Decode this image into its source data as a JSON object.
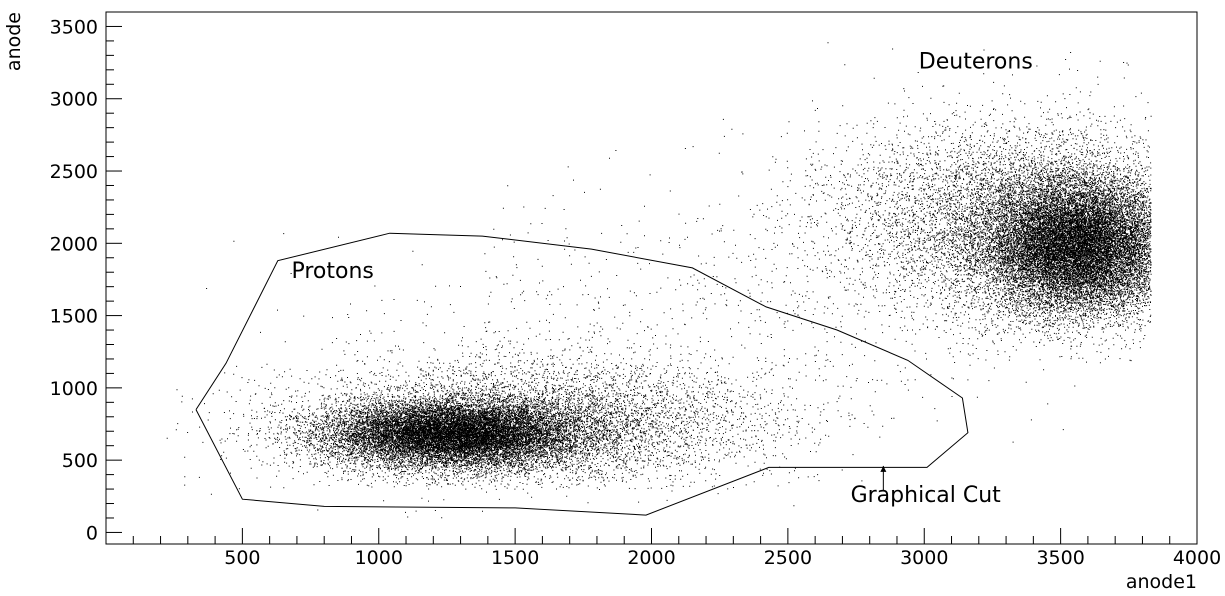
{
  "chart_data": {
    "type": "scatter",
    "title": "",
    "xlabel": "anode1",
    "ylabel": "anode",
    "xlim": [
      0,
      4000
    ],
    "ylim": [
      -80,
      3600
    ],
    "grid": false,
    "legend": "none",
    "x_ticks": [
      500,
      1000,
      1500,
      2000,
      2500,
      3000,
      3500,
      4000
    ],
    "x_tick_labels": [
      "500",
      "1000",
      "1500",
      "2000",
      "2500",
      "3000",
      "3500",
      "4000"
    ],
    "y_ticks": [
      0,
      500,
      1000,
      1500,
      2000,
      2500,
      3000,
      3500
    ],
    "y_tick_labels": [
      "0",
      "500",
      "1000",
      "1500",
      "2000",
      "2500",
      "3000",
      "3500"
    ],
    "marker_color": "#000000",
    "clusters": [
      {
        "name": "Protons",
        "center": [
          1270,
          680
        ],
        "spread": [
          230,
          110
        ],
        "count": 15000
      },
      {
        "name": "Protons",
        "center": [
          1550,
          760
        ],
        "spread": [
          420,
          210
        ],
        "count": 6500
      },
      {
        "name": "Deuterons",
        "center": [
          3560,
          1980
        ],
        "spread": [
          170,
          230
        ],
        "count": 17000
      },
      {
        "name": "Deuterons",
        "center": [
          3350,
          2150
        ],
        "spread": [
          330,
          330
        ],
        "count": 7000
      }
    ],
    "background_points": 1400,
    "graphical_cut": {
      "label": "Graphical Cut",
      "polygon": [
        [
          330,
          850
        ],
        [
          440,
          1170
        ],
        [
          630,
          1880
        ],
        [
          1040,
          2070
        ],
        [
          1200,
          2060
        ],
        [
          1380,
          2050
        ],
        [
          1780,
          1960
        ],
        [
          2150,
          1830
        ],
        [
          2420,
          1560
        ],
        [
          2680,
          1400
        ],
        [
          2940,
          1190
        ],
        [
          3140,
          930
        ],
        [
          3160,
          690
        ],
        [
          3010,
          450
        ],
        [
          2430,
          450
        ],
        [
          1980,
          120
        ],
        [
          1500,
          170
        ],
        [
          800,
          180
        ],
        [
          500,
          230
        ],
        [
          330,
          850
        ]
      ],
      "arrow_from": [
        2850,
        290
      ],
      "arrow_to": [
        2850,
        460
      ]
    },
    "annotations": [
      {
        "text": "Protons",
        "x": 680,
        "y": 1760
      },
      {
        "text": "Deuterons",
        "x": 2980,
        "y": 3210
      },
      {
        "text": "Graphical Cut",
        "x": 2730,
        "y": 210
      }
    ]
  }
}
